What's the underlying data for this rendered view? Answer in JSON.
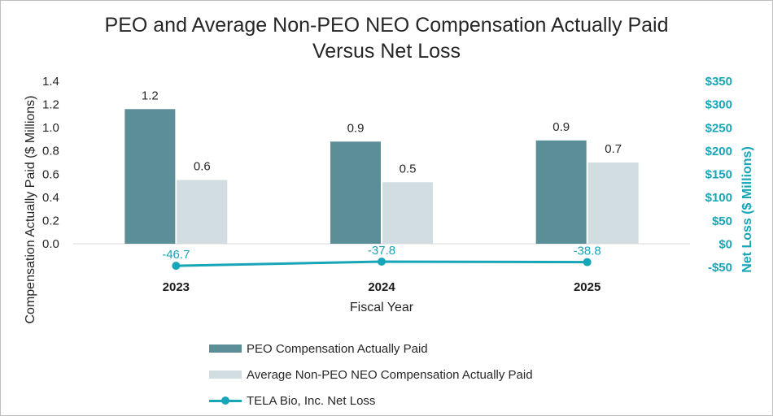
{
  "chart_data": {
    "type": "bar",
    "title_lines": [
      "PEO and Average Non-PEO NEO Compensation Actually Paid",
      "Versus Net Loss"
    ],
    "xlabel": "Fiscal Year",
    "ylabel_left": "Compensation Actually Paid ($ Millions)",
    "ylabel_right": "Net Loss ($ Millions)",
    "categories": [
      "2023",
      "2024",
      "2025"
    ],
    "y_left": {
      "min": 0,
      "max": 1.4,
      "ticks": [
        0,
        0.2,
        0.4,
        0.6,
        0.8,
        1.0,
        1.2,
        1.4
      ],
      "tick_labels": [
        "0.0",
        "0.2",
        "0.4",
        "0.6",
        "0.8",
        "1.0",
        "1.2",
        "1.4"
      ]
    },
    "y_right": {
      "min": -50,
      "max": 350,
      "ticks": [
        -50,
        0,
        50,
        100,
        150,
        200,
        250,
        300,
        350
      ],
      "tick_labels": [
        "-$50",
        "$0",
        "$50",
        "$100",
        "$150",
        "$200",
        "$250",
        "$300",
        "$350"
      ]
    },
    "series": [
      {
        "name": "PEO Compensation Actually Paid",
        "kind": "bar",
        "axis": "left",
        "color": "#5b8e96",
        "values": [
          1.16,
          0.88,
          0.89
        ],
        "labels": [
          "1.2",
          "0.9",
          "0.9"
        ]
      },
      {
        "name": "Average Non-PEO NEO Compensation Actually Paid",
        "kind": "bar",
        "axis": "left",
        "color": "#d1dde1",
        "values": [
          0.55,
          0.53,
          0.7
        ],
        "labels": [
          "0.6",
          "0.5",
          "0.7"
        ]
      },
      {
        "name": "TELA Bio, Inc. Net Loss",
        "kind": "line",
        "axis": "right",
        "color": "#17a5b8",
        "values": [
          -46.7,
          -37.8,
          -38.8
        ],
        "labels": [
          "-46.7",
          "-37.8",
          "-38.8"
        ]
      }
    ],
    "grid": false,
    "legend_position": "bottom"
  }
}
